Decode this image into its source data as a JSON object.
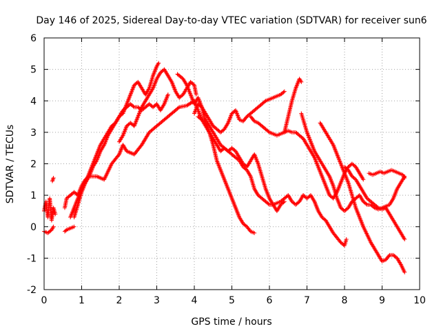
{
  "chart_data": {
    "type": "scatter",
    "title": "Day 146 of 2025, Sidereal Day-to-day VTEC variation (SDTVAR) for receiver sun6",
    "xlabel": "GPS time / hours",
    "ylabel": "SDTVAR / TECUs",
    "xlim": [
      0,
      10
    ],
    "ylim": [
      -2,
      6
    ],
    "xticks": [
      "0",
      "1",
      "2",
      "3",
      "4",
      "5",
      "6",
      "7",
      "8",
      "9",
      "10"
    ],
    "yticks": [
      "-2",
      "-1",
      "0",
      "1",
      "2",
      "3",
      "4",
      "5",
      "6"
    ],
    "grid": true,
    "marker": "plus",
    "color": "#ff0000",
    "series": [
      {
        "x": [
          0.0,
          0.05,
          0.1,
          0.15,
          0.2,
          0.25,
          0.3
        ],
        "y": [
          0.5,
          0.8,
          0.3,
          0.9,
          0.2,
          0.6,
          0.4
        ]
      },
      {
        "x": [
          0.0,
          0.1,
          0.2,
          0.25
        ],
        "y": [
          -0.15,
          -0.2,
          -0.1,
          0.0
        ]
      },
      {
        "x": [
          0.22,
          0.25
        ],
        "y": [
          1.45,
          1.55
        ]
      },
      {
        "x": [
          0.55,
          0.6,
          0.7,
          0.8
        ],
        "y": [
          -0.15,
          -0.1,
          -0.05,
          0.0
        ]
      },
      {
        "x": [
          0.55,
          0.6,
          0.7,
          0.8,
          0.9,
          1.0,
          1.1,
          1.2,
          1.4,
          1.6,
          1.8,
          2.0,
          2.1,
          2.2,
          2.4,
          2.6,
          2.8,
          3.0,
          3.1,
          3.2,
          3.4,
          3.6,
          3.8,
          4.0,
          4.1,
          4.2,
          4.3,
          4.4,
          4.5,
          4.6,
          4.7,
          4.8,
          4.9,
          5.0,
          5.1,
          5.2,
          5.3,
          5.4,
          5.5,
          5.6
        ],
        "y": [
          0.6,
          0.9,
          1.0,
          1.1,
          1.0,
          1.3,
          1.5,
          1.6,
          1.6,
          1.5,
          2.0,
          2.3,
          2.6,
          2.4,
          2.3,
          2.6,
          3.0,
          3.2,
          3.3,
          3.4,
          3.6,
          3.8,
          3.85,
          4.0,
          3.7,
          3.4,
          3.2,
          3.0,
          2.6,
          2.1,
          1.8,
          1.5,
          1.2,
          0.9,
          0.6,
          0.3,
          0.1,
          0.0,
          -0.15,
          -0.2
        ]
      },
      {
        "x": [
          0.7,
          0.8,
          0.9,
          1.0,
          1.1,
          1.2,
          1.3,
          1.4,
          1.5,
          1.6,
          1.7,
          1.8,
          1.9,
          2.0,
          2.1,
          2.2,
          2.3,
          2.4,
          2.5,
          2.6,
          2.7,
          2.8,
          2.9,
          3.0,
          3.05
        ],
        "y": [
          0.3,
          0.6,
          0.9,
          1.2,
          1.4,
          1.7,
          2.0,
          2.3,
          2.6,
          2.8,
          3.0,
          3.2,
          3.3,
          3.5,
          3.6,
          3.9,
          4.2,
          4.5,
          4.6,
          4.4,
          4.2,
          4.4,
          4.8,
          5.1,
          5.2
        ]
      },
      {
        "x": [
          0.8,
          0.9,
          1.0,
          1.1,
          1.2,
          1.3,
          1.4,
          1.5,
          1.6,
          1.7,
          1.8,
          1.9,
          2.0,
          2.1,
          2.2,
          2.3,
          2.4,
          2.5,
          2.6,
          2.7,
          2.8,
          2.9,
          3.0,
          3.1,
          3.2,
          3.3
        ],
        "y": [
          0.3,
          0.7,
          1.1,
          1.4,
          1.6,
          1.9,
          2.1,
          2.4,
          2.6,
          2.9,
          3.1,
          3.3,
          3.5,
          3.7,
          3.8,
          3.9,
          3.8,
          3.8,
          3.7,
          3.8,
          3.9,
          3.8,
          3.9,
          3.7,
          3.9,
          4.2
        ]
      },
      {
        "x": [
          2.0,
          2.1,
          2.2,
          2.3,
          2.4,
          2.5,
          2.6,
          2.7,
          2.8,
          2.9,
          3.0,
          3.1,
          3.2,
          3.3,
          3.4,
          3.5,
          3.6,
          3.7,
          3.8,
          3.9,
          4.0,
          4.05
        ],
        "y": [
          2.7,
          2.9,
          3.2,
          3.3,
          3.2,
          3.5,
          3.8,
          4.0,
          4.2,
          4.4,
          4.7,
          4.9,
          5.0,
          4.8,
          4.6,
          4.3,
          4.1,
          4.2,
          4.4,
          4.6,
          4.5,
          4.2
        ]
      },
      {
        "x": [
          3.55,
          3.6,
          3.7,
          3.8,
          3.9,
          4.0,
          4.1,
          4.2,
          4.3,
          4.4,
          4.5,
          4.6,
          4.7,
          4.8,
          4.9,
          5.0,
          5.1,
          5.2,
          5.3,
          5.4,
          5.5,
          5.6,
          5.7,
          5.8,
          5.9,
          6.0,
          6.1,
          6.2,
          6.3,
          6.4
        ],
        "y": [
          4.85,
          4.8,
          4.7,
          4.5,
          4.2,
          3.9,
          4.1,
          3.8,
          3.3,
          3.0,
          2.8,
          2.6,
          2.4,
          2.5,
          2.4,
          2.5,
          2.4,
          2.2,
          2.0,
          1.9,
          2.1,
          2.3,
          2.0,
          1.6,
          1.2,
          0.9,
          0.7,
          0.5,
          0.7,
          0.8
        ]
      },
      {
        "x": [
          4.0,
          4.1,
          4.2,
          4.3,
          4.4,
          4.5,
          4.6,
          4.7,
          4.8,
          4.9,
          5.0,
          5.1,
          5.2,
          5.3,
          5.4,
          5.5,
          5.6,
          5.7,
          5.8,
          5.9,
          6.0,
          6.1,
          6.2,
          6.3,
          6.4
        ],
        "y": [
          3.6,
          3.9,
          3.8,
          3.6,
          3.4,
          3.2,
          3.1,
          3.0,
          3.1,
          3.3,
          3.6,
          3.7,
          3.4,
          3.35,
          3.5,
          3.6,
          3.7,
          3.8,
          3.9,
          4.0,
          4.05,
          4.1,
          4.15,
          4.2,
          4.3
        ]
      },
      {
        "x": [
          4.1,
          4.2,
          4.3,
          4.4,
          4.5,
          4.6,
          4.7,
          4.8,
          4.9,
          5.0,
          5.1,
          5.2,
          5.3,
          5.4,
          5.5,
          5.6,
          5.7,
          5.8,
          5.9,
          6.0,
          6.1,
          6.2,
          6.3,
          6.4,
          6.5,
          6.6,
          6.7,
          6.8,
          6.9
        ],
        "y": [
          3.5,
          3.4,
          3.4,
          3.2,
          3.0,
          2.8,
          2.6,
          2.5,
          2.4,
          2.3,
          2.2,
          2.1,
          1.9,
          1.8,
          1.6,
          1.2,
          1.0,
          0.9,
          0.8,
          0.7,
          0.7,
          0.75,
          0.8,
          0.9,
          1.0,
          0.8,
          0.7,
          0.8,
          1.0
        ]
      },
      {
        "x": [
          5.5,
          5.6,
          5.7,
          5.8,
          5.9,
          6.0,
          6.1,
          6.2,
          6.3,
          6.4,
          6.5,
          6.6,
          6.7,
          6.8,
          6.85
        ],
        "y": [
          3.5,
          3.35,
          3.3,
          3.2,
          3.1,
          3.0,
          2.95,
          2.9,
          2.95,
          3.0,
          3.5,
          4.0,
          4.4,
          4.7,
          4.6
        ]
      },
      {
        "x": [
          6.4,
          6.5,
          6.6,
          6.7,
          6.8,
          6.9,
          7.0,
          7.1,
          7.2,
          7.3,
          7.4,
          7.5,
          7.6,
          7.7,
          7.8,
          7.9,
          8.0,
          8.1,
          8.2,
          8.3,
          8.4,
          8.5
        ],
        "y": [
          3.0,
          3.05,
          3.0,
          3.0,
          2.9,
          2.8,
          2.6,
          2.4,
          2.2,
          1.9,
          1.6,
          1.3,
          1.0,
          0.9,
          1.1,
          1.4,
          1.7,
          1.9,
          2.0,
          1.9,
          1.7,
          1.5
        ]
      },
      {
        "x": [
          6.85,
          6.9,
          7.0,
          7.1,
          7.2,
          7.3,
          7.4,
          7.5,
          7.6,
          7.7,
          7.8,
          7.9,
          8.0,
          8.1,
          8.2,
          8.3,
          8.4,
          8.5,
          8.6,
          8.7,
          8.8,
          8.9,
          9.0,
          9.1,
          9.2,
          9.3,
          9.4,
          9.5,
          9.6
        ],
        "y": [
          3.6,
          3.4,
          3.0,
          2.7,
          2.4,
          2.2,
          2.0,
          1.8,
          1.6,
          1.3,
          0.9,
          0.6,
          0.5,
          0.6,
          0.8,
          0.9,
          1.0,
          0.8,
          0.7,
          0.7,
          0.6,
          0.55,
          0.6,
          0.65,
          0.7,
          0.9,
          1.2,
          1.4,
          1.6
        ]
      },
      {
        "x": [
          6.9,
          7.0,
          7.1,
          7.2,
          7.3,
          7.4,
          7.5,
          7.6,
          7.7,
          7.8,
          7.9,
          8.0,
          8.05
        ],
        "y": [
          1.0,
          0.9,
          1.0,
          0.8,
          0.5,
          0.3,
          0.2,
          0.0,
          -0.2,
          -0.35,
          -0.5,
          -0.6,
          -0.4
        ]
      },
      {
        "x": [
          7.35,
          7.5,
          7.6,
          7.7,
          7.8,
          7.9,
          8.0,
          8.1,
          8.2,
          8.3,
          8.4,
          8.5,
          8.6,
          8.7,
          8.8,
          8.9,
          9.0,
          9.1,
          9.2,
          9.3,
          9.4,
          9.5,
          9.6
        ],
        "y": [
          3.3,
          3.0,
          2.8,
          2.6,
          2.3,
          2.0,
          1.7,
          1.4,
          1.0,
          0.6,
          0.3,
          0.0,
          -0.25,
          -0.5,
          -0.7,
          -0.9,
          -1.1,
          -1.05,
          -0.9,
          -0.9,
          -1.0,
          -1.2,
          -1.45
        ]
      },
      {
        "x": [
          8.0,
          8.1,
          8.2,
          8.3,
          8.4,
          8.5,
          8.6,
          8.7,
          8.8,
          8.9,
          9.0,
          9.1,
          9.2,
          9.3,
          9.4,
          9.5,
          9.6
        ],
        "y": [
          1.9,
          1.8,
          1.6,
          1.5,
          1.3,
          1.1,
          0.9,
          0.8,
          0.7,
          0.6,
          0.55,
          0.6,
          0.4,
          0.2,
          0.0,
          -0.2,
          -0.4
        ]
      },
      {
        "x": [
          8.65,
          8.75,
          8.85,
          8.95,
          9.05,
          9.15,
          9.25,
          9.35,
          9.45,
          9.55,
          9.6
        ],
        "y": [
          1.7,
          1.65,
          1.7,
          1.75,
          1.7,
          1.75,
          1.8,
          1.75,
          1.7,
          1.65,
          1.55
        ]
      }
    ]
  }
}
